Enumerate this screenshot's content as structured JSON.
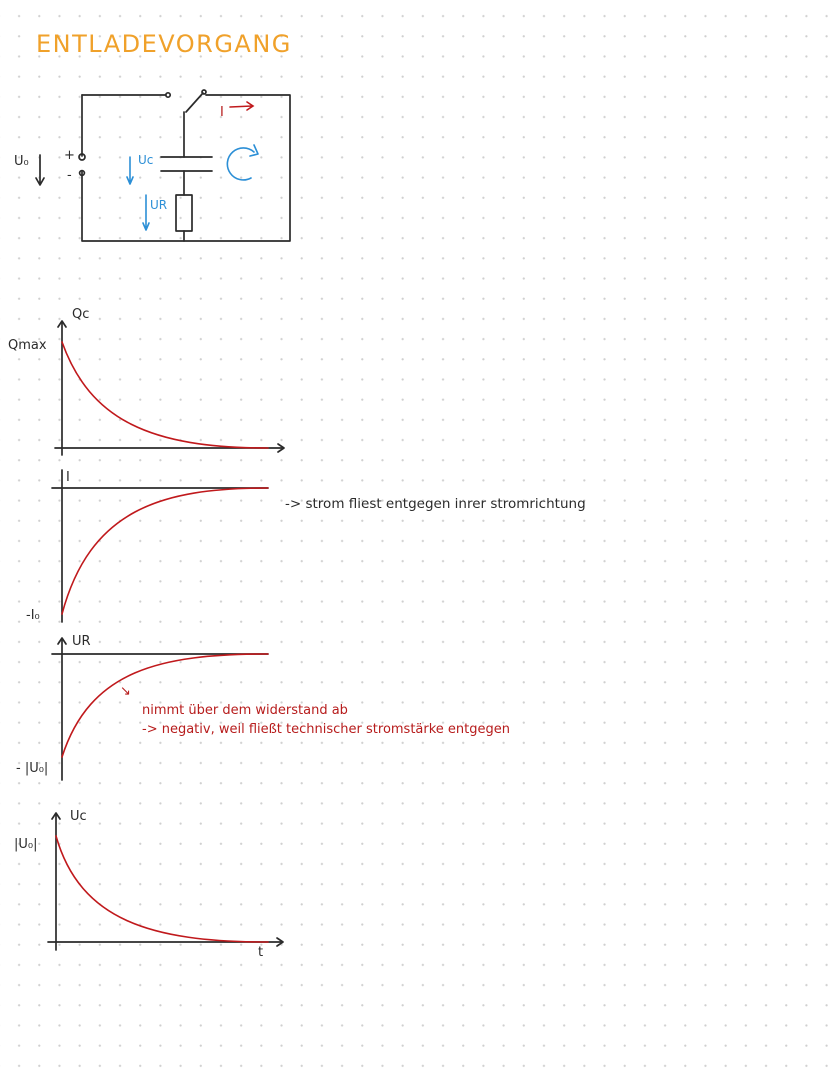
{
  "title": "ENTLADEVORGANG",
  "circuit": {
    "source_label": "U₀",
    "plus": "+",
    "minus": "-",
    "current_label": "I",
    "uc_label": "Uc",
    "ur_label": "UR"
  },
  "graphs": {
    "qc": {
      "y_label": "Qc",
      "y_value": "Qmax"
    },
    "i": {
      "y_label": "I",
      "y_value": "-I₀",
      "note": "-> strom fliest entgegen inrer stromrichtung"
    },
    "ur": {
      "y_label": "UR",
      "y_value": "- |U₀|",
      "note_arrow": "↘",
      "note_line1": "nimmt über dem widerstand ab",
      "note_line2": "-> negativ, weil fließt technischer stromstärke entgegen"
    },
    "uc": {
      "y_label": "Uc",
      "y_value": "|U₀|",
      "x_label": "t"
    }
  },
  "colors": {
    "title": "#f0a12a",
    "ink": "#2b2b2b",
    "curve": "#c0191c",
    "annotation": "#2c8fd6"
  }
}
